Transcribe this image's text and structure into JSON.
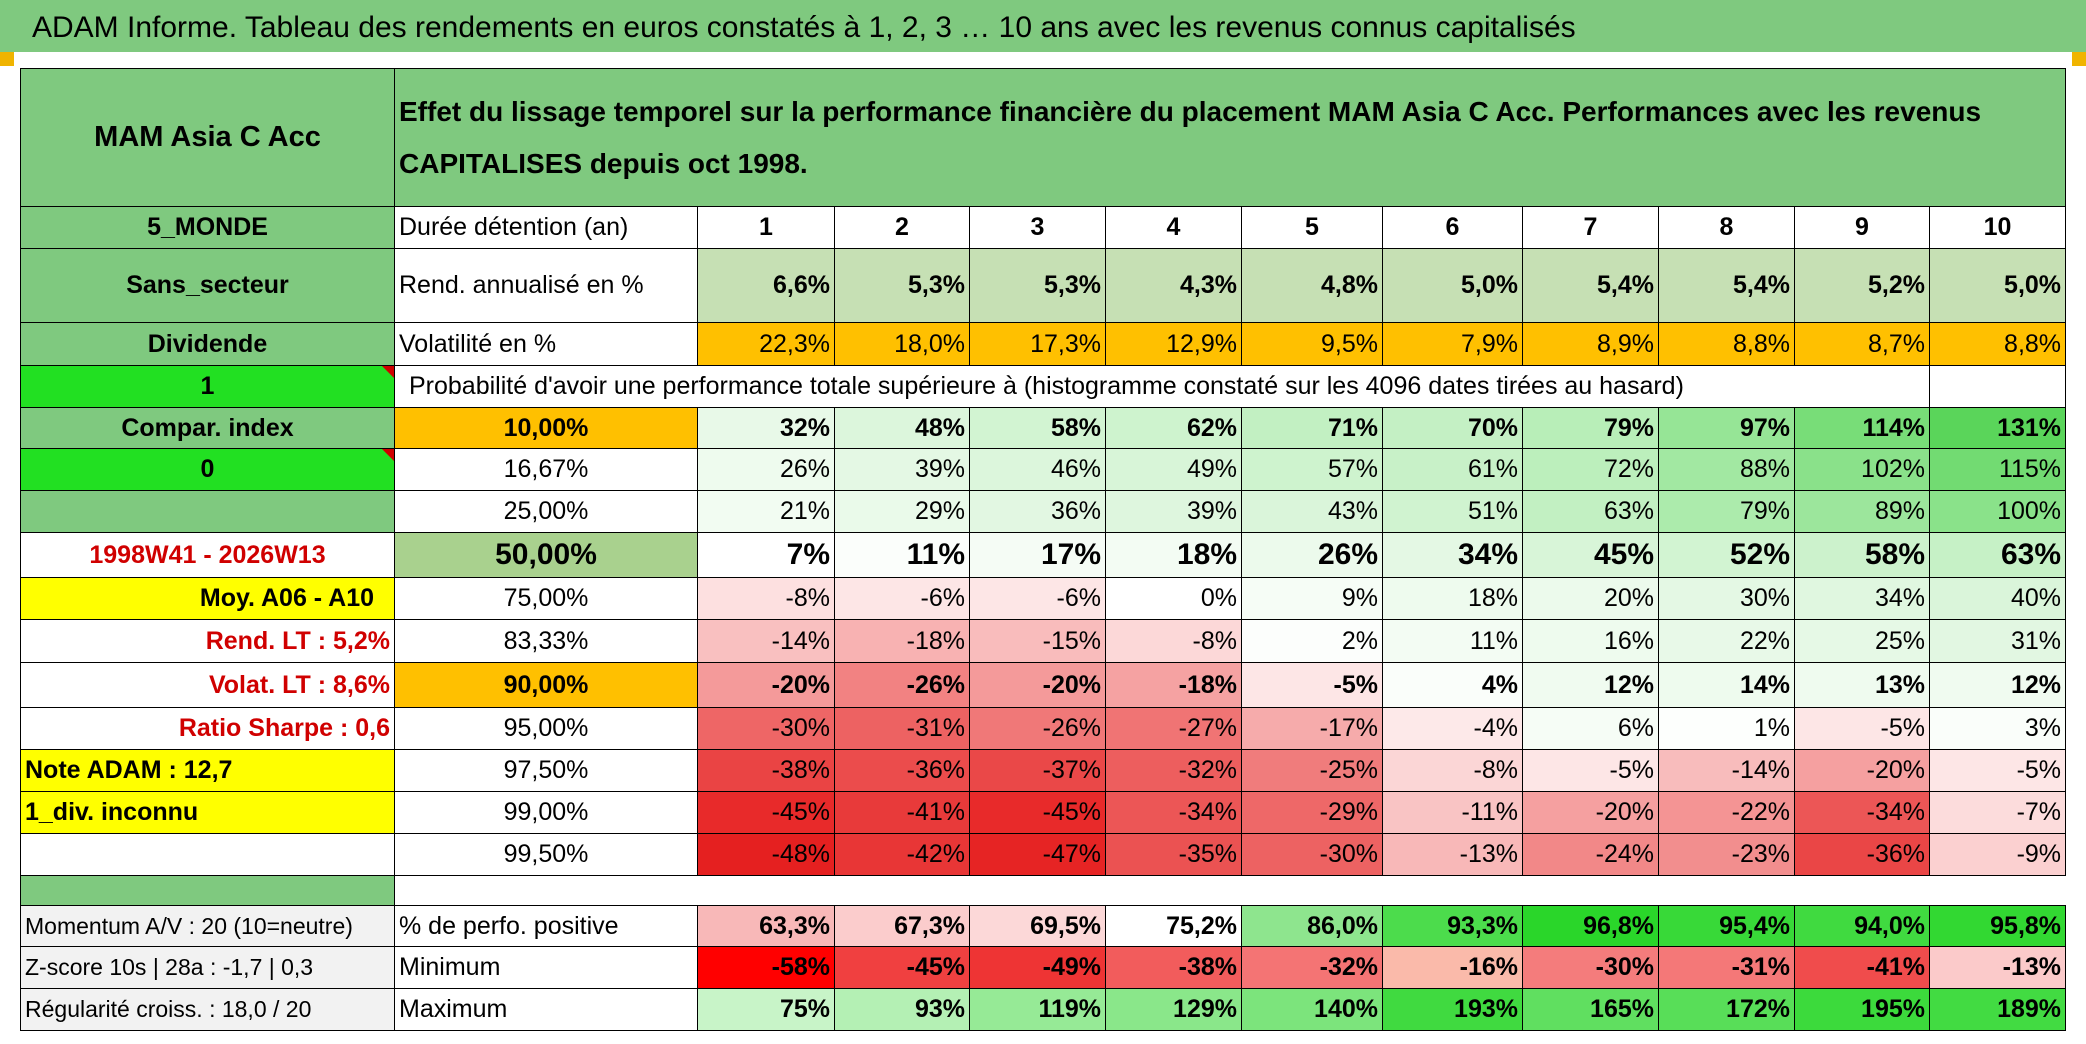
{
  "title": "ADAM Informe. Tableau des rendements en euros constatés à 1, 2, 3 … 10 ans avec les revenus connus capitalisés",
  "fund": {
    "name": "MAM Asia C Acc",
    "region": "5_MONDE",
    "sector": "Sans_secteur",
    "income_type": "Dividende",
    "flag_value": "1",
    "compar_label": "Compar. index",
    "compar_value": "0",
    "period": "1998W41 - 2026W13",
    "avg_label": "Moy. A06 - A10",
    "rend_lt": "Rend. LT :   5,2%",
    "volat_lt": "Volat. LT :   8,6%",
    "sharpe": "Ratio Sharpe :   0,6",
    "note": "Note ADAM : 12,7",
    "div_info": "1_div. inconnu"
  },
  "headline": "Effet du lissage temporel sur la performance financière du placement MAM Asia C Acc. Performances avec les revenus CAPITALISES depuis oct 1998.",
  "duration": {
    "label": "Durée détention (an)",
    "years": [
      "1",
      "2",
      "3",
      "4",
      "5",
      "6",
      "7",
      "8",
      "9",
      "10"
    ]
  },
  "annual_return": {
    "label": "Rend. annualisé en %",
    "values": [
      "6,6%",
      "5,3%",
      "5,3%",
      "4,3%",
      "4,8%",
      "5,0%",
      "5,4%",
      "5,4%",
      "5,2%",
      "5,0%"
    ]
  },
  "volatility": {
    "label": "Volatilité en %",
    "values": [
      "22,3%",
      "18,0%",
      "17,3%",
      "12,9%",
      "9,5%",
      "7,9%",
      "8,9%",
      "8,8%",
      "8,7%",
      "8,8%"
    ]
  },
  "probability_heading": "Probabilité d'avoir une performance totale supérieure à (histogramme constaté sur les 4096 dates tirées au hasard)",
  "percentiles": [
    {
      "p": "10,00%",
      "values": [
        "32%",
        "48%",
        "58%",
        "62%",
        "71%",
        "70%",
        "79%",
        "97%",
        "114%",
        "131%"
      ]
    },
    {
      "p": "16,67%",
      "values": [
        "26%",
        "39%",
        "46%",
        "49%",
        "57%",
        "61%",
        "72%",
        "88%",
        "102%",
        "115%"
      ]
    },
    {
      "p": "25,00%",
      "values": [
        "21%",
        "29%",
        "36%",
        "39%",
        "43%",
        "51%",
        "63%",
        "79%",
        "89%",
        "100%"
      ]
    },
    {
      "p": "50,00%",
      "values": [
        "7%",
        "11%",
        "17%",
        "18%",
        "26%",
        "34%",
        "45%",
        "52%",
        "58%",
        "63%"
      ]
    },
    {
      "p": "75,00%",
      "values": [
        "-8%",
        "-6%",
        "-6%",
        "0%",
        "9%",
        "18%",
        "20%",
        "30%",
        "34%",
        "40%"
      ]
    },
    {
      "p": "83,33%",
      "values": [
        "-14%",
        "-18%",
        "-15%",
        "-8%",
        "2%",
        "11%",
        "16%",
        "22%",
        "25%",
        "31%"
      ]
    },
    {
      "p": "90,00%",
      "values": [
        "-20%",
        "-26%",
        "-20%",
        "-18%",
        "-5%",
        "4%",
        "12%",
        "14%",
        "13%",
        "12%"
      ]
    },
    {
      "p": "95,00%",
      "values": [
        "-30%",
        "-31%",
        "-26%",
        "-27%",
        "-17%",
        "-4%",
        "6%",
        "1%",
        "-5%",
        "3%"
      ]
    },
    {
      "p": "97,50%",
      "values": [
        "-38%",
        "-36%",
        "-37%",
        "-32%",
        "-25%",
        "-8%",
        "-5%",
        "-14%",
        "-20%",
        "-5%"
      ]
    },
    {
      "p": "99,00%",
      "values": [
        "-45%",
        "-41%",
        "-45%",
        "-34%",
        "-29%",
        "-11%",
        "-20%",
        "-22%",
        "-34%",
        "-7%"
      ]
    },
    {
      "p": "99,50%",
      "values": [
        "-48%",
        "-42%",
        "-47%",
        "-35%",
        "-30%",
        "-13%",
        "-24%",
        "-23%",
        "-36%",
        "-9%"
      ]
    }
  ],
  "footer": {
    "momentum": "Momentum A/V : 20 (10=neutre)",
    "zscore": "Z-score 10s | 28a : -1,7 | 0,3",
    "regularite": "Régularité croiss. : 18,0 / 20",
    "positive": {
      "label": "% de perfo. positive",
      "values": [
        "63,3%",
        "67,3%",
        "69,5%",
        "75,2%",
        "86,0%",
        "93,3%",
        "96,8%",
        "95,4%",
        "94,0%",
        "95,8%"
      ]
    },
    "minimum": {
      "label": "Minimum",
      "values": [
        "-58%",
        "-45%",
        "-49%",
        "-38%",
        "-32%",
        "-16%",
        "-30%",
        "-31%",
        "-41%",
        "-13%"
      ]
    },
    "maximum": {
      "label": "Maximum",
      "values": [
        "75%",
        "93%",
        "119%",
        "129%",
        "140%",
        "193%",
        "165%",
        "172%",
        "195%",
        "189%"
      ]
    }
  },
  "colors": {
    "header_green": "#7fc97f",
    "bright_green": "#22e022",
    "yellow": "#ffff00",
    "orange": "#ffc000",
    "alert_red": "#d00000"
  }
}
